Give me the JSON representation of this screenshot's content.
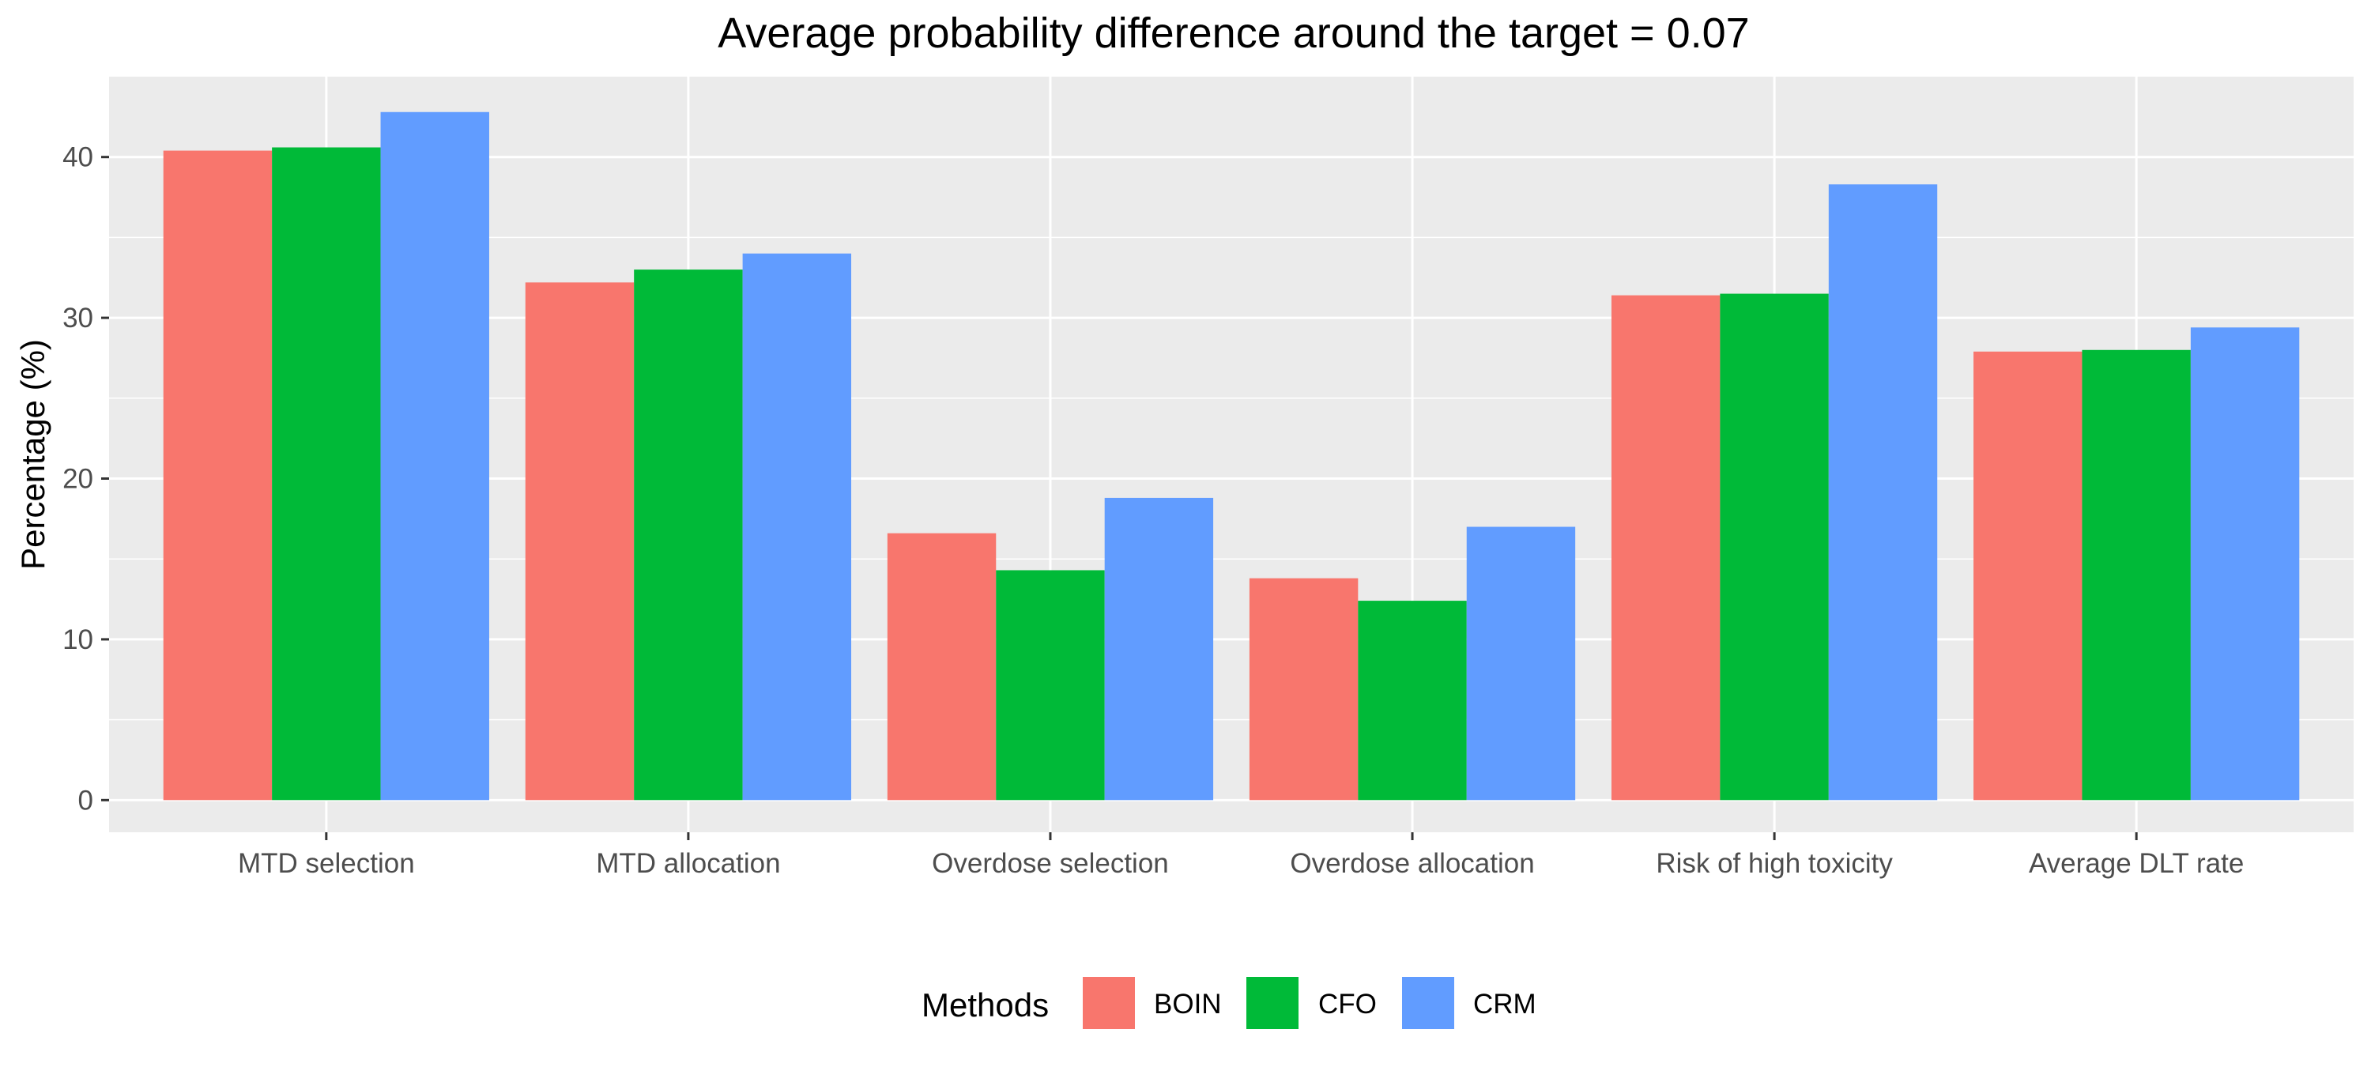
{
  "chart_data": {
    "type": "bar",
    "title": "Average probability difference around the target = 0.07",
    "xlabel": "",
    "ylabel": "Percentage (%)",
    "categories": [
      "MTD selection",
      "MTD allocation",
      "Overdose selection",
      "Overdose allocation",
      "Risk of high toxicity",
      "Average DLT rate"
    ],
    "series": [
      {
        "name": "BOIN",
        "color": "#F8766D",
        "values": [
          40.4,
          32.2,
          16.6,
          13.8,
          31.4,
          27.9
        ]
      },
      {
        "name": "CFO",
        "color": "#00BA38",
        "values": [
          40.6,
          33.0,
          14.3,
          12.4,
          31.5,
          28.0
        ]
      },
      {
        "name": "CRM",
        "color": "#619CFF",
        "values": [
          42.8,
          34.0,
          18.8,
          17.0,
          38.3,
          29.4
        ]
      }
    ],
    "ylim": [
      -2,
      45
    ],
    "yticks": [
      0,
      10,
      20,
      30,
      40
    ],
    "grid": true,
    "legend": {
      "title": "Methods",
      "position": "bottom"
    },
    "colors": {
      "panel": "#EBEBEB",
      "grid": "#FFFFFF"
    }
  }
}
